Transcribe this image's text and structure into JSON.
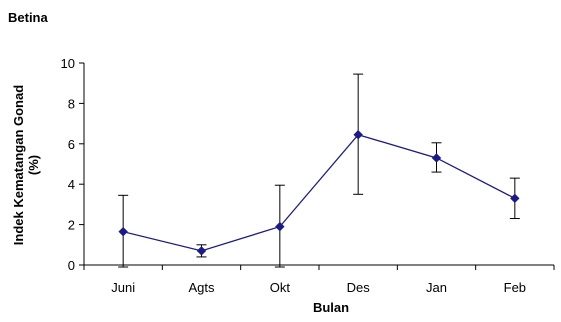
{
  "chart_data": {
    "type": "line",
    "title": "Betina",
    "ylabel_line1": "Indek Kematangan Gonad",
    "ylabel_line2": "(%)",
    "xlabel": "Bulan",
    "categories": [
      "Juni",
      "Agts",
      "Okt",
      "Des",
      "Jan",
      "Feb"
    ],
    "series": [
      {
        "values": [
          1.65,
          0.7,
          1.9,
          6.45,
          5.3,
          3.3
        ],
        "error_upper": [
          3.45,
          1.0,
          3.95,
          9.45,
          6.05,
          4.3
        ],
        "error_lower": [
          -0.1,
          0.4,
          -0.1,
          3.5,
          4.6,
          2.3
        ],
        "color": "#1a1a8c"
      }
    ],
    "ylim": [
      0,
      10
    ],
    "yticks": [
      0,
      2,
      4,
      6,
      8,
      10
    ],
    "grid": false
  }
}
